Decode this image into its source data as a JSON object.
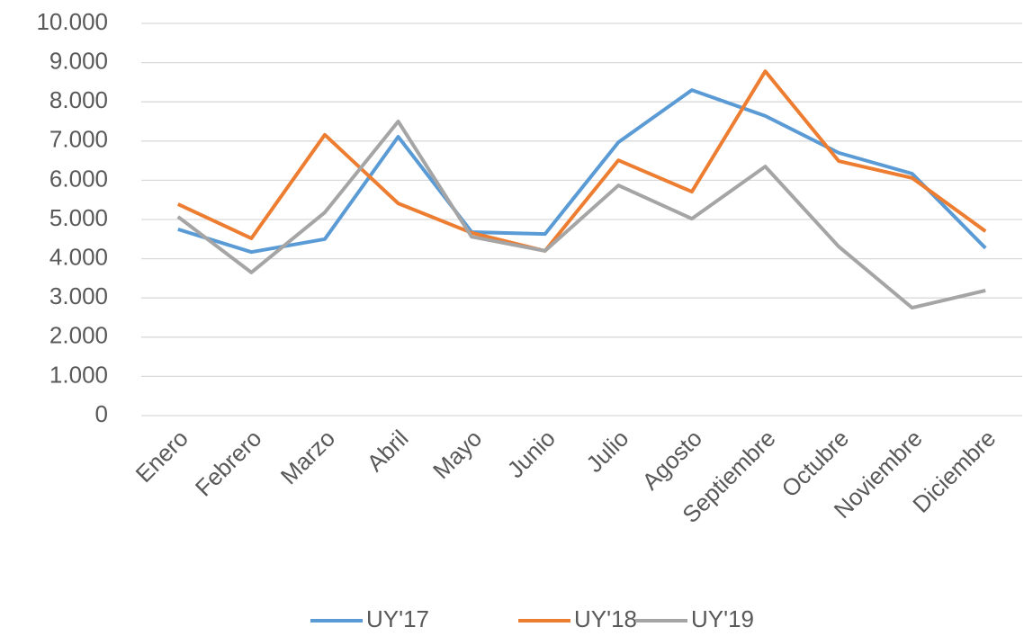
{
  "chart_data": {
    "type": "line",
    "categories": [
      "Enero",
      "Febrero",
      "Marzo",
      "Abril",
      "Mayo",
      "Junio",
      "Julio",
      "Agosto",
      "Septiembre",
      "Octubre",
      "Noviembre",
      "Diciembre"
    ],
    "series": [
      {
        "name": "UY'17",
        "color": "#5b9bd5",
        "values": [
          4750,
          4170,
          4500,
          7110,
          4680,
          4630,
          6970,
          8300,
          7640,
          6700,
          6170,
          4270
        ]
      },
      {
        "name": "UY'18",
        "color": "#ed7d31",
        "values": [
          5390,
          4520,
          7160,
          5410,
          4660,
          4200,
          6510,
          5710,
          8780,
          6490,
          6060,
          4700
        ]
      },
      {
        "name": "UY'19",
        "color": "#a5a5a5",
        "values": [
          5070,
          3650,
          5180,
          7500,
          4560,
          4200,
          5870,
          5020,
          6350,
          4310,
          2750,
          3190
        ]
      }
    ],
    "ylim": [
      0,
      10000
    ],
    "yticks": [
      0,
      {
        "value": 1000,
        "label": "1.000"
      },
      {
        "value": 2000,
        "label": "2.000"
      },
      {
        "value": 3000,
        "label": "3.000"
      },
      {
        "value": 4000,
        "label": "4.000"
      },
      {
        "value": 5000,
        "label": "5.000"
      },
      {
        "value": 6000,
        "label": "6.000"
      },
      {
        "value": 7000,
        "label": "7.000"
      },
      {
        "value": 8000,
        "label": "8.000"
      },
      {
        "value": 9000,
        "label": "9.000"
      },
      {
        "value": 10000,
        "label": "10.000"
      }
    ],
    "grid": true,
    "legend": "bottom"
  }
}
